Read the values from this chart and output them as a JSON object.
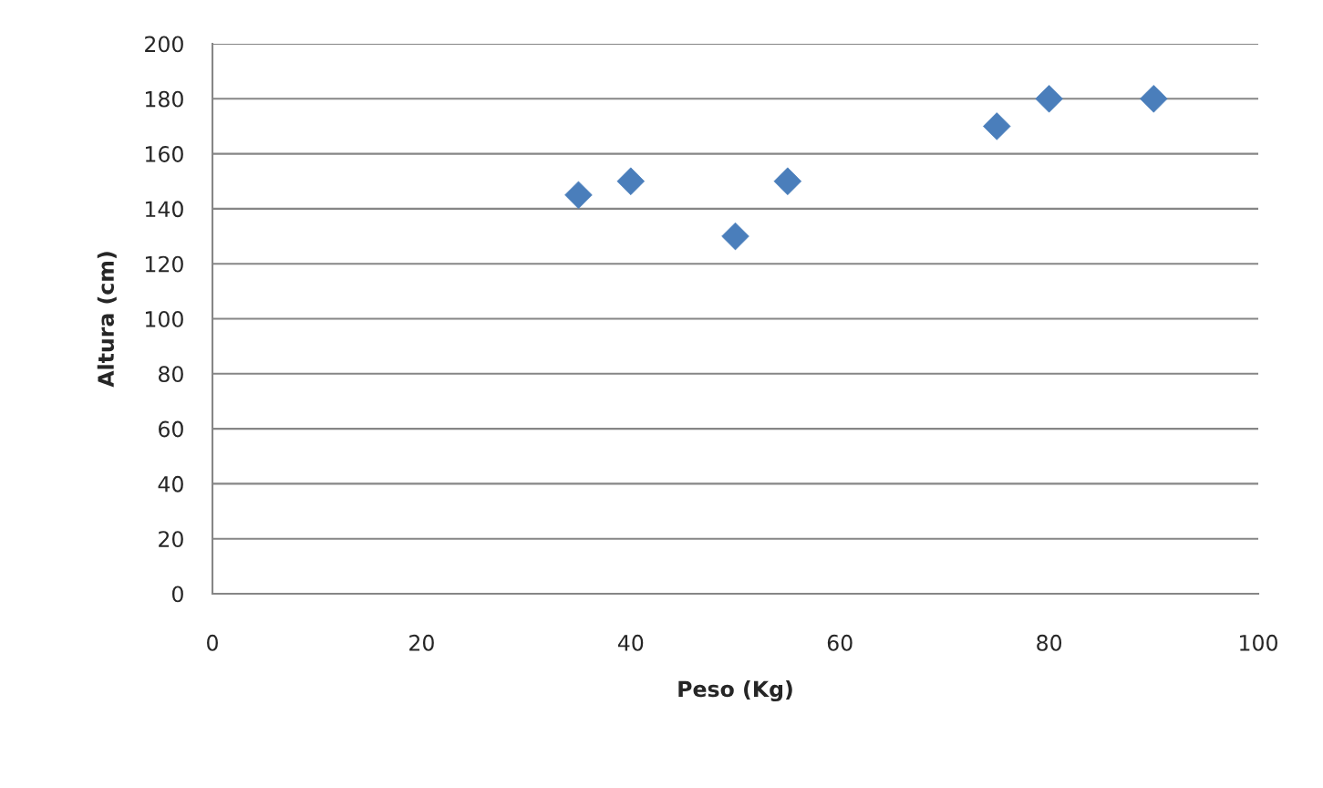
{
  "chart_data": {
    "type": "scatter",
    "xlabel": "Peso (Kg)",
    "ylabel": "Altura (cm)",
    "x": [
      35,
      40,
      50,
      55,
      75,
      80,
      90
    ],
    "series": [
      {
        "color": "#4a7ebb",
        "values": [
          145,
          150,
          130,
          150,
          170,
          180,
          180
        ]
      }
    ],
    "xlim": [
      0,
      100
    ],
    "xticks": [
      0,
      20,
      40,
      60,
      80,
      100
    ],
    "ylim": [
      0,
      200
    ],
    "yticks": [
      0,
      20,
      40,
      60,
      80,
      100,
      120,
      140,
      160,
      180,
      200
    ],
    "grid": "y",
    "marker": "diamond",
    "legend": false
  }
}
